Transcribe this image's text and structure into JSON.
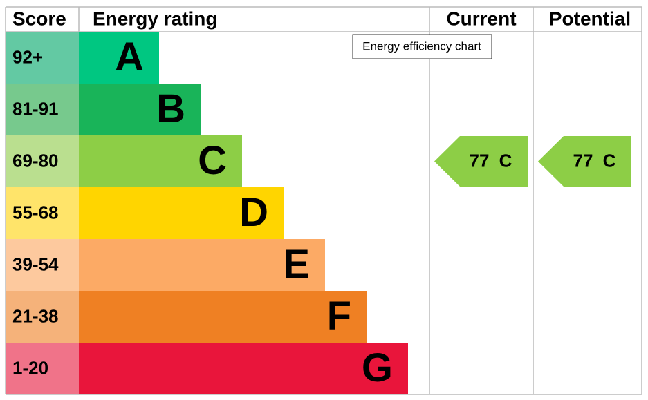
{
  "header": {
    "score": "Score",
    "rating": "Energy rating",
    "current": "Current",
    "potential": "Potential"
  },
  "bands": [
    {
      "score": "92+",
      "letter": "A",
      "color": "#00c781",
      "score_color": "#63c9a3"
    },
    {
      "score": "81-91",
      "letter": "B",
      "color": "#19b459",
      "score_color": "#77c98d"
    },
    {
      "score": "69-80",
      "letter": "C",
      "color": "#8dce46",
      "score_color": "#badf8f"
    },
    {
      "score": "55-68",
      "letter": "D",
      "color": "#ffd500",
      "score_color": "#ffe46a"
    },
    {
      "score": "39-54",
      "letter": "E",
      "color": "#fcaa65",
      "score_color": "#fdc99e"
    },
    {
      "score": "21-38",
      "letter": "F",
      "color": "#ef8023",
      "score_color": "#f5b27a"
    },
    {
      "score": "1-20",
      "letter": "G",
      "color": "#e9153b",
      "score_color": "#f07389"
    }
  ],
  "current": {
    "value": 77,
    "rating": "C"
  },
  "potential": {
    "value": 77,
    "rating": "C"
  },
  "tooltip": "Energy efficiency chart"
}
